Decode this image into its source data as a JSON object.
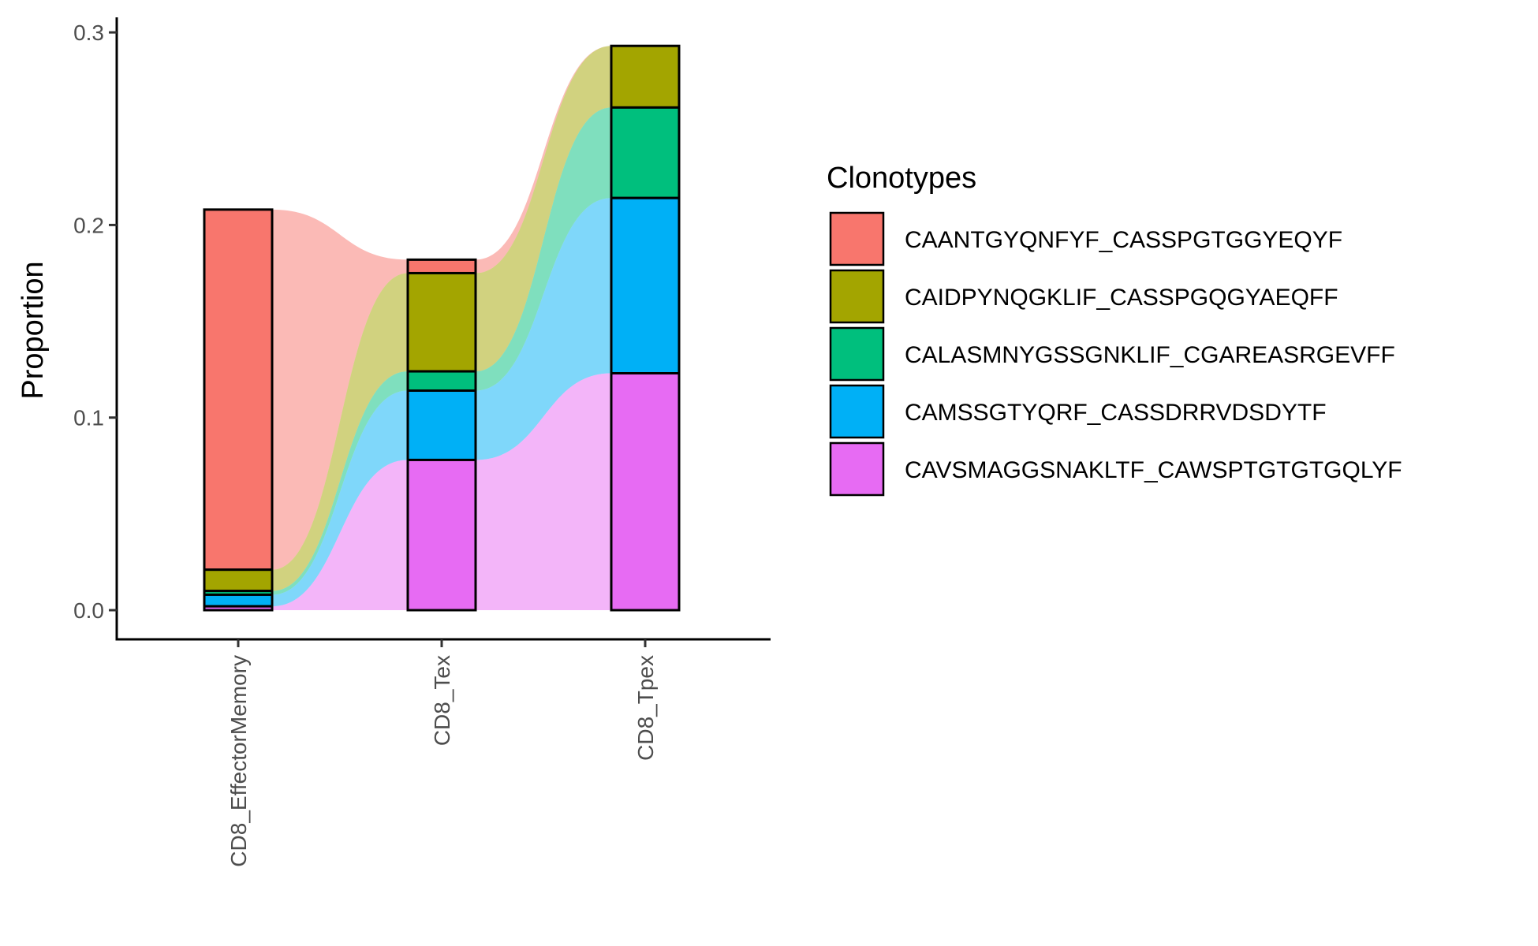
{
  "chart_data": {
    "type": "alluvial-stacked-bar",
    "title": "",
    "xlabel": "",
    "ylabel": "Proportion",
    "ylim": [
      0,
      0.3
    ],
    "yticks": [
      0.0,
      0.1,
      0.2,
      0.3
    ],
    "ytick_labels": [
      "0.0",
      "0.1",
      "0.2",
      "0.3"
    ],
    "grid": false,
    "legend_position": "right",
    "legend_title": "Clonotypes",
    "categories": [
      "CD8_EffectorMemory",
      "CD8_Tex",
      "CD8_Tpex"
    ],
    "series": [
      {
        "name": "CAANTGYQNFYF_CASSPGTGGYEQYF",
        "color": "#F8766D",
        "values": [
          0.187,
          0.007,
          0.0
        ]
      },
      {
        "name": "CAIDPYNQGKLIF_CASSPGQGYAEQFF",
        "color": "#A3A500",
        "values": [
          0.011,
          0.051,
          0.032
        ]
      },
      {
        "name": "CALASMNYGSSGNKLIF_CGAREASRGEVFF",
        "color": "#00BF7D",
        "values": [
          0.002,
          0.01,
          0.047
        ]
      },
      {
        "name": "CAMSSGTYQRF_CASSDRRVDSDYTF",
        "color": "#00B0F6",
        "values": [
          0.006,
          0.036,
          0.091
        ]
      },
      {
        "name": "CAVSMAGGSNAKLTF_CAWSPTGTGTGQLYF",
        "color": "#E76BF3",
        "values": [
          0.002,
          0.078,
          0.123
        ]
      }
    ]
  }
}
